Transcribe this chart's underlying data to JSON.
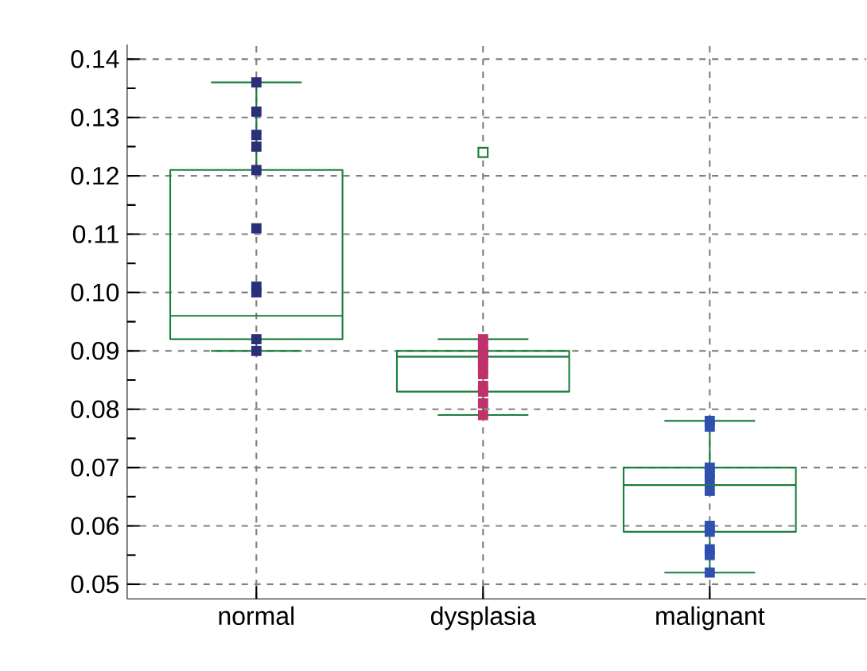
{
  "chart_data": {
    "type": "box",
    "categories": [
      "normal",
      "dysplasia",
      "malignant"
    ],
    "series": [
      {
        "color": "#1a7f3c",
        "boxes": [
          {
            "low": 0.09,
            "q1": 0.092,
            "median": 0.096,
            "q3": 0.121,
            "high": 0.136
          },
          {
            "low": 0.079,
            "q1": 0.083,
            "median": 0.089,
            "q3": 0.09,
            "high": 0.092,
            "outliers": [
              0.124
            ]
          },
          {
            "low": 0.052,
            "q1": 0.059,
            "median": 0.067,
            "q3": 0.07,
            "high": 0.078
          }
        ]
      },
      {
        "type": "scatter",
        "color": "#2b2f7a",
        "x": [
          "normal",
          "normal",
          "normal",
          "normal",
          "normal",
          "normal",
          "normal",
          "normal",
          "normal",
          "normal"
        ],
        "values": [
          0.136,
          0.131,
          0.127,
          0.125,
          0.121,
          0.111,
          0.1,
          0.101,
          0.092,
          0.09
        ]
      },
      {
        "type": "scatter",
        "color": "#c0306a",
        "x": [
          "dysplasia",
          "dysplasia",
          "dysplasia",
          "dysplasia",
          "dysplasia",
          "dysplasia",
          "dysplasia",
          "dysplasia",
          "dysplasia",
          "dysplasia",
          "dysplasia"
        ],
        "values": [
          0.092,
          0.091,
          0.09,
          0.089,
          0.088,
          0.087,
          0.086,
          0.084,
          0.083,
          0.081,
          0.079
        ]
      },
      {
        "type": "scatter",
        "color": "#3050b0",
        "x": [
          "malignant",
          "malignant",
          "malignant",
          "malignant",
          "malignant",
          "malignant",
          "malignant",
          "malignant",
          "malignant",
          "malignant",
          "malignant"
        ],
        "values": [
          0.078,
          0.077,
          0.07,
          0.069,
          0.068,
          0.066,
          0.06,
          0.059,
          0.056,
          0.055,
          0.052
        ]
      }
    ],
    "ylim": [
      0.0475,
      0.1425
    ],
    "yticks": [
      {
        "value": 0.05,
        "label": "0.05"
      },
      {
        "value": 0.06,
        "label": "0.06"
      },
      {
        "value": 0.07,
        "label": "0.07"
      },
      {
        "value": 0.08,
        "label": "0.08"
      },
      {
        "value": 0.09,
        "label": "0.09"
      },
      {
        "value": 0.1,
        "label": "0.10"
      },
      {
        "value": 0.11,
        "label": "0.11"
      },
      {
        "value": 0.12,
        "label": "0.12"
      },
      {
        "value": 0.13,
        "label": "0.13"
      },
      {
        "value": 0.14,
        "label": "0.14"
      }
    ],
    "grid": true,
    "marker": "square"
  }
}
